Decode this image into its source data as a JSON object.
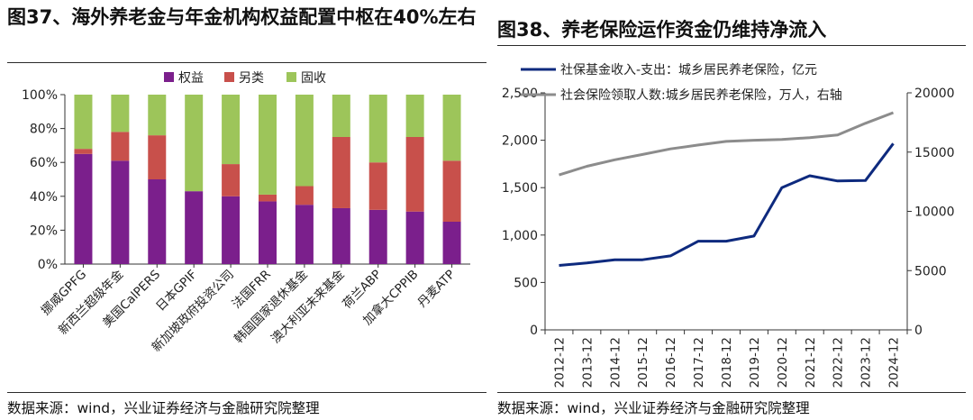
{
  "left_title": "图37、海外养老金与年金机构权益配置中枢在40%左右",
  "right_title": "图38、养老保险运作资金仍维持净流入",
  "left_source": "数据来源：wind，兴业证券经济与金融研究院整理",
  "right_source": "数据来源：wind，兴业证券经济与金融研究院整理",
  "colors": {
    "equity": "#7B1F8C",
    "alternative": "#C8504B",
    "fixed_income": "#9DC55A",
    "line_income": "#0E2A7E",
    "line_people": "#8C8C8C"
  },
  "chart_data": [
    {
      "type": "bar",
      "stacked": true,
      "categories": [
        "挪威GPFG",
        "新西兰超级年金",
        "美国CalPERS",
        "日本GPIF",
        "新加坡政府投资公司",
        "法国FRR",
        "韩国国家退休基金",
        "澳大利亚未来基金",
        "荷兰ABP",
        "加拿大CPPIB",
        "丹麦ATP"
      ],
      "series": [
        {
          "name": "权益",
          "values": [
            65,
            61,
            50,
            43,
            40,
            37,
            35,
            33,
            32,
            31,
            25
          ]
        },
        {
          "name": "另类",
          "values": [
            3,
            17,
            26,
            0,
            19,
            4,
            11,
            42,
            28,
            44,
            36
          ]
        },
        {
          "name": "固收",
          "values": [
            32,
            22,
            24,
            57,
            41,
            59,
            54,
            25,
            40,
            25,
            39
          ]
        }
      ],
      "ylim": [
        0,
        100
      ],
      "yticks": [
        "0%",
        "20%",
        "40%",
        "60%",
        "80%",
        "100%"
      ],
      "legend": [
        "权益",
        "另类",
        "固收"
      ],
      "legend_position": "top-center"
    },
    {
      "type": "line",
      "x": [
        "2012-12",
        "2013-12",
        "2014-12",
        "2015-12",
        "2016-12",
        "2017-12",
        "2018-12",
        "2019-12",
        "2020-12",
        "2021-12",
        "2022-12",
        "2023-12",
        "2024-12"
      ],
      "series": [
        {
          "name": "社保基金收入-支出：城乡居民养老保险，亿元",
          "axis": "left",
          "values": [
            680,
            705,
            740,
            740,
            780,
            935,
            935,
            990,
            1500,
            1625,
            1570,
            1575,
            1965
          ]
        },
        {
          "name": "社会保险领取人数:城乡居民养老保险，万人，右轴",
          "axis": "right",
          "values": [
            13075,
            13800,
            14350,
            14800,
            15270,
            15600,
            15900,
            16000,
            16070,
            16220,
            16450,
            17430,
            18330
          ]
        }
      ],
      "left_ylim": [
        0,
        2500
      ],
      "right_ylim": [
        0,
        20000
      ],
      "left_yticks": [
        "0",
        "500",
        "1,000",
        "1,500",
        "2,000",
        "2,500"
      ],
      "right_yticks": [
        "0",
        "5000",
        "10000",
        "15000",
        "20000"
      ],
      "legend_position": "top-left"
    }
  ]
}
